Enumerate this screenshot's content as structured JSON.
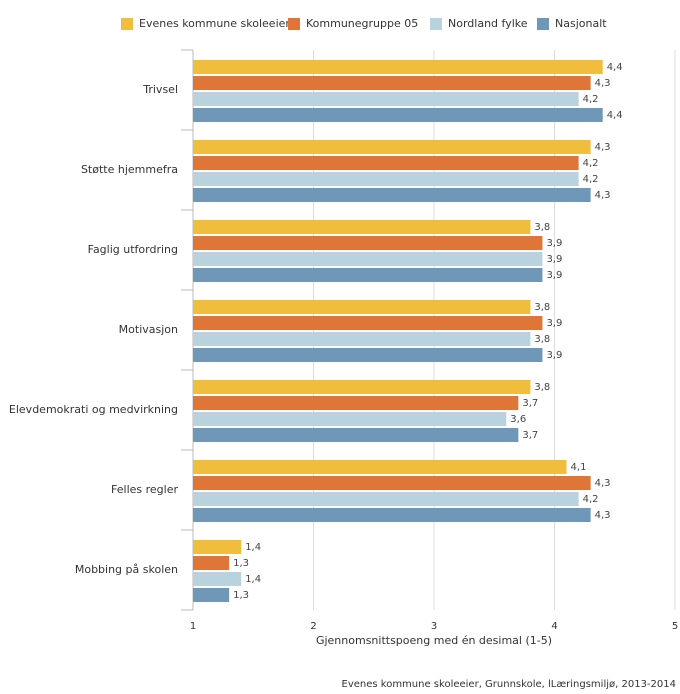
{
  "chart_data": {
    "type": "hbar",
    "categories": [
      "Trivsel",
      "Støtte hjemmefra",
      "Faglig utfordring",
      "Motivasjon",
      "Elevdemokrati og medvirkning",
      "Felles regler",
      "Mobbing på skolen"
    ],
    "series": [
      {
        "name": "Evenes kommune skoleeier",
        "color": "#f0be3c",
        "values": [
          4.4,
          4.3,
          3.8,
          3.8,
          3.8,
          4.1,
          1.4
        ],
        "value_labels": [
          "4,4",
          "4,3",
          "3,8",
          "3,8",
          "3,8",
          "4,1",
          "1,4"
        ]
      },
      {
        "name": "Kommunegruppe 05",
        "color": "#e07538",
        "values": [
          4.3,
          4.2,
          3.9,
          3.9,
          3.7,
          4.3,
          1.3
        ],
        "value_labels": [
          "4,3",
          "4,2",
          "3,9",
          "3,9",
          "3,7",
          "4,3",
          "1,3"
        ]
      },
      {
        "name": "Nordland fylke",
        "color": "#b8d3dd",
        "values": [
          4.2,
          4.2,
          3.9,
          3.8,
          3.6,
          4.2,
          1.4
        ],
        "value_labels": [
          "4,2",
          "4,2",
          "3,9",
          "3,8",
          "3,6",
          "4,2",
          "1,4"
        ]
      },
      {
        "name": "Nasjonalt",
        "color": "#6f97b8",
        "values": [
          4.4,
          4.3,
          3.9,
          3.9,
          3.7,
          4.3,
          1.3
        ],
        "value_labels": [
          "4,4",
          "4,3",
          "3,9",
          "3,9",
          "3,7",
          "4,3",
          "1,3"
        ]
      }
    ],
    "xlabel": "Gjennomsnittspoeng med én desimal (1-5)",
    "xlim": [
      1,
      5
    ],
    "xticks": [
      1,
      2,
      3,
      4,
      5
    ],
    "grid": true,
    "source": "Evenes kommune skoleeier, Grunnskole, lLæringsmiljø, 2013-2014"
  }
}
